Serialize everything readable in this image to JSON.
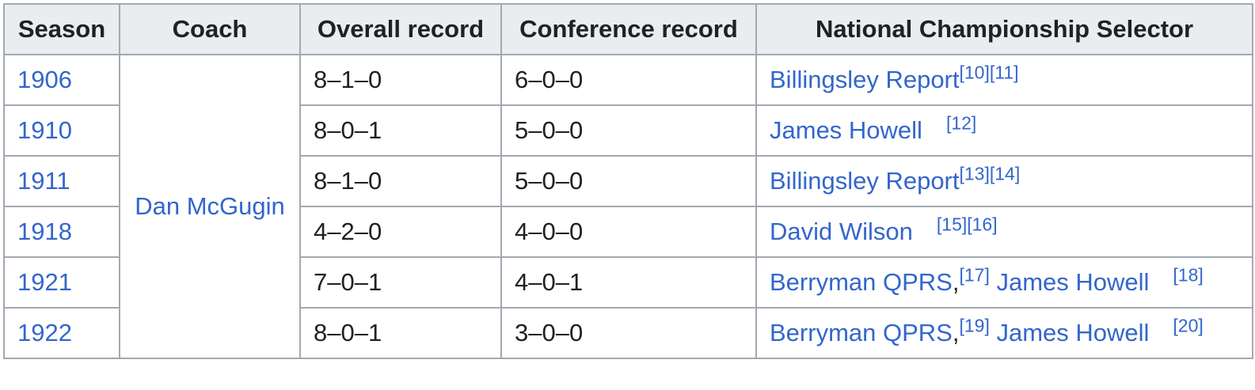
{
  "table": {
    "headers": {
      "season": "Season",
      "coach": "Coach",
      "overall": "Overall record",
      "conference": "Conference record",
      "selector": "National Championship Selector"
    },
    "coach_name": "Dan McGugin",
    "rows": [
      {
        "season": "1906",
        "overall": "8–1–0",
        "conference": "6–0–0",
        "sel1": "Billingsley Report",
        "ref1": "[10][11]",
        "sep": "",
        "sel2": "",
        "ref2": ""
      },
      {
        "season": "1910",
        "overall": "8–0–1",
        "conference": "5–0–0",
        "sel1": "James Howell",
        "ref1": "[12]",
        "sep": "",
        "sel2": "",
        "ref2": ""
      },
      {
        "season": "1911",
        "overall": "8–1–0",
        "conference": "5–0–0",
        "sel1": "Billingsley Report",
        "ref1": "[13][14]",
        "sep": "",
        "sel2": "",
        "ref2": ""
      },
      {
        "season": "1918",
        "overall": "4–2–0",
        "conference": "4–0–0",
        "sel1": "David Wilson",
        "ref1": "[15][16]",
        "sep": "",
        "sel2": "",
        "ref2": ""
      },
      {
        "season": "1921",
        "overall": "7–0–1",
        "conference": "4–0–1",
        "sel1": "Berryman QPRS",
        "ref1": "[17]",
        "sep": ",",
        "sel2": "James Howell",
        "ref2": "[18]"
      },
      {
        "season": "1922",
        "overall": "8–0–1",
        "conference": "3–0–0",
        "sel1": "Berryman QPRS",
        "ref1": "[19]",
        "sep": ",",
        "sel2": "James Howell",
        "ref2": "[20]"
      }
    ]
  }
}
